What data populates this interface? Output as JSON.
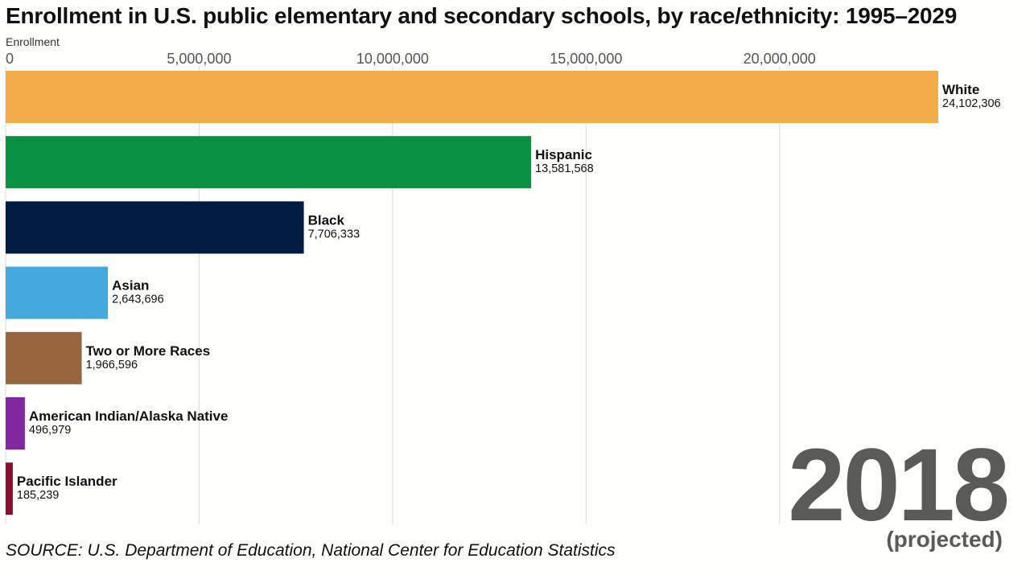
{
  "chart_data": {
    "type": "bar",
    "orientation": "horizontal",
    "title": "Enrollment in U.S. public elementary and secondary schools, by race/ethnicity: 1995–2029",
    "xlabel": "Enrollment",
    "xlim": [
      0,
      24102306
    ],
    "x_ticks": [
      {
        "value": 0,
        "label": "0"
      },
      {
        "value": 5000000,
        "label": "5,000,000"
      },
      {
        "value": 10000000,
        "label": "10,000,000"
      },
      {
        "value": 15000000,
        "label": "15,000,000"
      },
      {
        "value": 20000000,
        "label": "20,000,000"
      }
    ],
    "grid": true,
    "categories": [
      "White",
      "Hispanic",
      "Black",
      "Asian",
      "Two or More Races",
      "American Indian/Alaska Native",
      "Pacific Islander"
    ],
    "values": [
      24102306,
      13581568,
      7706333,
      2643696,
      1966596,
      496979,
      185239
    ],
    "value_labels": [
      "24,102,306",
      "13,581,568",
      "7,706,333",
      "2,643,696",
      "1,966,596",
      "496,979",
      "185,239"
    ],
    "colors": [
      "#f4ac4b",
      "#0a9244",
      "#021b43",
      "#45a9dd",
      "#99653c",
      "#8127a0",
      "#8a0c2c"
    ],
    "year": "2018",
    "year_note": "(projected)",
    "source": "SOURCE: U.S. Department of Education, National Center for Education Statistics"
  }
}
